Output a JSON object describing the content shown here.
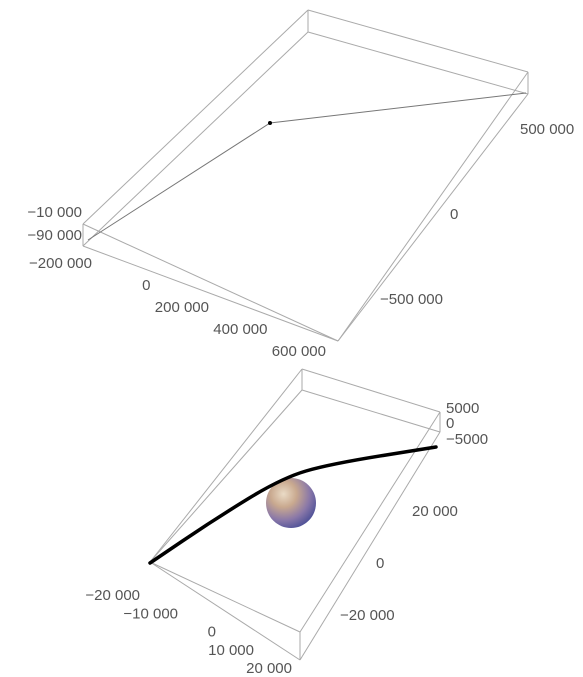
{
  "chart_data": [
    {
      "type": "line",
      "title": "",
      "series": [
        {
          "name": "",
          "points": [
            {
              "x": -200000,
              "y": -600000,
              "z": -90000
            },
            {
              "x": 150000,
              "y": 0,
              "z": -10000
            },
            {
              "x": 600000,
              "y": 800000,
              "z": -10000
            }
          ]
        }
      ],
      "marker": {
        "x": 150000,
        "y": 0,
        "z": -10000
      },
      "axes": {
        "x": {
          "ticks": [
            "−200 000",
            "0",
            "200 000",
            "400 000",
            "600 000"
          ]
        },
        "y": {
          "ticks": [
            "−500 000",
            "0",
            "500 000"
          ]
        },
        "z": {
          "ticks": [
            "−10 000",
            "−90 000"
          ]
        }
      },
      "box": true
    },
    {
      "type": "line",
      "title": "",
      "series": [
        {
          "name": "",
          "points": [
            {
              "x": -20000,
              "y": -30000,
              "z": -2000
            },
            {
              "x": -8000,
              "y": -10000,
              "z": -1000
            },
            {
              "x": 0,
              "y": 3000,
              "z": -500
            },
            {
              "x": 8000,
              "y": 12000,
              "z": 0
            },
            {
              "x": 20000,
              "y": 30000,
              "z": 5000
            }
          ]
        }
      ],
      "sphere": {
        "center": {
          "x": 0,
          "y": 0,
          "z": 0
        }
      },
      "axes": {
        "x": {
          "ticks": [
            "−20 000",
            "−10 000",
            "0",
            "10 000",
            "20 000"
          ]
        },
        "y": {
          "ticks": [
            "−20 000",
            "0",
            "20 000"
          ]
        },
        "z": {
          "ticks": [
            "5000",
            "0",
            "−5000"
          ]
        }
      },
      "box": true
    }
  ],
  "colors": {
    "box": "#aaaaaa",
    "tick_text": "#555555",
    "trajectory_top": "#777777",
    "trajectory_bottom": "#000000",
    "sphere_warm": "#d4b894",
    "sphere_cool": "#6a6eb8"
  }
}
